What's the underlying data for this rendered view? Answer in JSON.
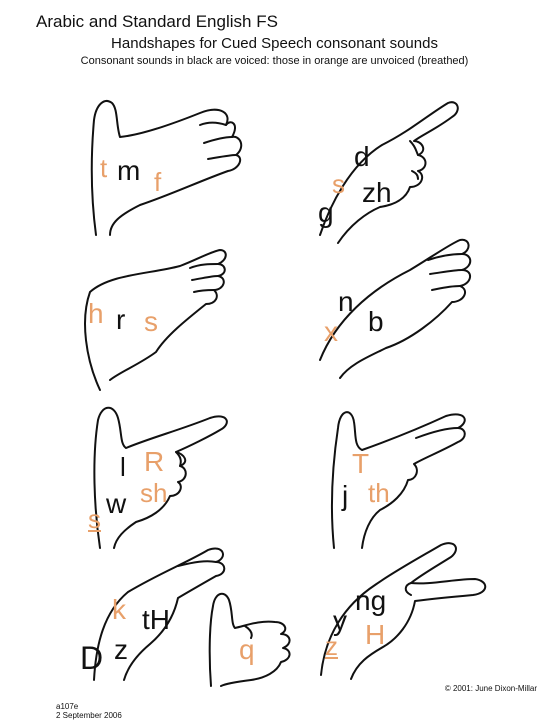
{
  "header": {
    "top_title": "Arabic and Standard English FS",
    "main_title": "Handshapes for Cued Speech consonant sounds",
    "subtitle": "Consonant sounds in black are voiced: those in orange are unvoiced (breathed)"
  },
  "colors": {
    "voiced": "#111111",
    "unvoiced": "#e8a06a"
  },
  "handshapes": [
    {
      "id": "hand-1",
      "letters": {
        "a": "t",
        "b": "m",
        "c": "f"
      }
    },
    {
      "id": "hand-2",
      "letters": {
        "a": "d",
        "b": "s",
        "c": "g",
        "d": "zh"
      }
    },
    {
      "id": "hand-3",
      "letters": {
        "a": "h",
        "b": "r",
        "c": "s"
      }
    },
    {
      "id": "hand-4",
      "letters": {
        "a": "n",
        "b": "x",
        "c": "b"
      }
    },
    {
      "id": "hand-5",
      "letters": {
        "a": "l",
        "b": "R",
        "c": "sh",
        "d": "s",
        "e": "w"
      }
    },
    {
      "id": "hand-6",
      "letters": {
        "a": "T",
        "b": "j",
        "c": "th"
      }
    },
    {
      "id": "hand-7",
      "letters": {
        "a": "k",
        "b": "tH",
        "c": "D",
        "d": "z"
      }
    },
    {
      "id": "hand-8",
      "letters": {
        "a": "q"
      }
    },
    {
      "id": "hand-9",
      "letters": {
        "a": "ng",
        "b": "y",
        "c": "H",
        "d": "z"
      }
    }
  ],
  "footer": {
    "copyright": "© 2001: June Dixon-Millar",
    "code": "a107e",
    "date": "2 September 2006"
  }
}
